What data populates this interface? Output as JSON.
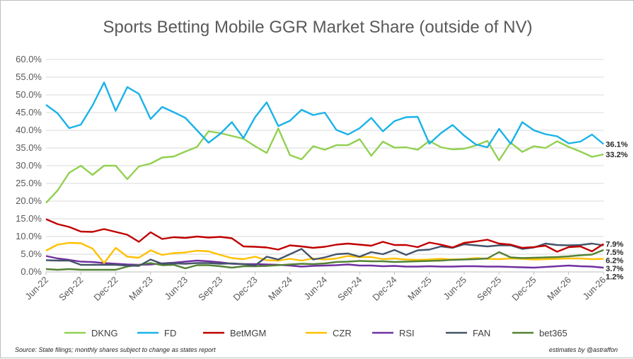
{
  "chart_data": {
    "type": "line",
    "title": "Sports Betting  Mobile GGR Market Share (outside of NV)",
    "y_ticks": [
      "0.0%",
      "5.0%",
      "10.0%",
      "15.0%",
      "20.0%",
      "25.0%",
      "30.0%",
      "35.0%",
      "40.0%",
      "45.0%",
      "50.0%",
      "55.0%",
      "60.0%"
    ],
    "ylim": [
      0,
      60
    ],
    "x_tick_labels": [
      "Jun-22",
      "Sep-22",
      "Dec-22",
      "Mar-23",
      "Jun-23",
      "Sep-23",
      "Dec-23",
      "Mar-24",
      "Jun-24",
      "Sep-24",
      "Dec-24",
      "Mar-25",
      "Jun-25",
      "Sep-25",
      "Dec-25",
      "Mar-26",
      "Jun-26"
    ],
    "x": [
      "Jun-22",
      "Jul-22",
      "Aug-22",
      "Sep-22",
      "Oct-22",
      "Nov-22",
      "Dec-22",
      "Jan-23",
      "Feb-23",
      "Mar-23",
      "Apr-23",
      "May-23",
      "Jun-23",
      "Jul-23",
      "Aug-23",
      "Sep-23",
      "Oct-23",
      "Nov-23",
      "Dec-23",
      "Jan-24",
      "Feb-24",
      "Mar-24",
      "Apr-24",
      "May-24",
      "Jun-24",
      "Jul-24",
      "Aug-24",
      "Sep-24",
      "Oct-24",
      "Nov-24",
      "Dec-24",
      "Jan-25",
      "Feb-25",
      "Mar-25",
      "Apr-25",
      "May-25",
      "Jun-25",
      "Jul-25",
      "Aug-25",
      "Sep-25",
      "Oct-25",
      "Nov-25",
      "Dec-25",
      "Jan-26",
      "Feb-26",
      "Mar-26",
      "Apr-26",
      "May-26",
      "Jun-26"
    ],
    "grid": true,
    "legend_position": "bottom",
    "series": [
      {
        "name": "DKNG",
        "color": "#92d050",
        "end_label": "33.2%",
        "values": [
          19.5,
          23,
          28,
          30,
          27.4,
          30,
          30,
          26.2,
          29.8,
          30.6,
          32.3,
          32.6,
          34,
          35.3,
          39.7,
          39.2,
          38.4,
          37.6,
          35.5,
          33.6,
          40.5,
          33,
          31.8,
          35.5,
          34.5,
          35.8,
          35.8,
          37.5,
          32.8,
          36.8,
          35.1,
          35.2,
          34.5,
          37,
          35.2,
          34.6,
          34.8,
          35.7,
          37,
          31.5,
          36.5,
          33.9,
          35.5,
          35,
          36.9,
          35.3,
          34,
          32.5,
          33.2
        ]
      },
      {
        "name": "FD",
        "color": "#1ab2e8",
        "end_label": "36.1%",
        "values": [
          47.2,
          44.8,
          40.6,
          41.6,
          47,
          53.5,
          45.5,
          52.2,
          50.3,
          43.2,
          46.6,
          45.1,
          43.5,
          40,
          36.5,
          39,
          42.3,
          37.8,
          43.7,
          47.9,
          41.2,
          42.7,
          45.8,
          44.3,
          45,
          40.1,
          38.8,
          40.6,
          43.5,
          39.7,
          42.6,
          43.7,
          43.8,
          36.2,
          39.2,
          41.5,
          38.5,
          36,
          35.2,
          40.4,
          36.2,
          42.3,
          40,
          38.9,
          38.3,
          36.3,
          36.8,
          38.8,
          36.1
        ]
      },
      {
        "name": "BetMGM",
        "color": "#c00000",
        "end_label": "7.9%",
        "values": [
          14.9,
          13.5,
          12.7,
          11.4,
          11.3,
          12.1,
          11.3,
          10.5,
          8.5,
          11.2,
          9.3,
          9.8,
          9.6,
          10,
          9.7,
          9.9,
          9.5,
          7.2,
          7.1,
          6.9,
          6.3,
          7.5,
          7.2,
          6.8,
          7.1,
          7.7,
          8,
          7.7,
          7.4,
          8.5,
          7.6,
          7.6,
          7,
          8.3,
          7.7,
          6.9,
          8.2,
          8.6,
          9.1,
          8,
          7.7,
          6.8,
          7,
          7.4,
          5.7,
          7,
          7.2,
          5.8,
          7.9
        ]
      },
      {
        "name": "CZR",
        "color": "#ffc000",
        "end_label": "3.7%",
        "values": [
          6,
          7.7,
          8.2,
          8.1,
          6.6,
          2.5,
          6.8,
          4.3,
          4,
          6.1,
          4.8,
          5.3,
          5.5,
          6,
          5.8,
          4.8,
          3.9,
          3.6,
          4.3,
          3.3,
          3.2,
          3.7,
          3.2,
          3.8,
          3.5,
          3.8,
          4.5,
          4.2,
          4.2,
          3.6,
          3.8,
          3.5,
          3.4,
          3.5,
          3.7,
          3.5,
          3.6,
          3.9,
          3.7,
          3.6,
          3.8,
          3.7,
          3.5,
          3.6,
          3.7,
          3.8,
          3.8,
          3.6,
          3.7
        ]
      },
      {
        "name": "RSI",
        "color": "#7030a0",
        "end_label": "1.2%",
        "values": [
          4.5,
          3.8,
          3.4,
          2.9,
          2.8,
          2.5,
          2.3,
          2.1,
          2,
          2.1,
          2.4,
          2.6,
          2.9,
          3.2,
          3,
          2.7,
          2.3,
          2.2,
          2.2,
          2.1,
          2,
          1.8,
          1.5,
          1.7,
          1.8,
          1.9,
          2.1,
          1.8,
          1.8,
          1.6,
          1.7,
          1.5,
          1.5,
          1.6,
          1.5,
          1.5,
          1.6,
          1.6,
          1.5,
          1.5,
          1.4,
          1.3,
          1.2,
          1.4,
          1.6,
          1.8,
          1.6,
          1.5,
          1.2
        ]
      },
      {
        "name": "FAN",
        "color": "#44546a",
        "end_label": "7.5%",
        "values": [
          3.3,
          3.2,
          3.2,
          2,
          2,
          2,
          2,
          1.8,
          1.7,
          3.5,
          2.3,
          2.4,
          2.3,
          2.5,
          2.5,
          2.3,
          2.4,
          2.2,
          1.8,
          4.3,
          3.5,
          5,
          6.5,
          3.5,
          4.1,
          5,
          5.2,
          4.3,
          5.6,
          5,
          6.2,
          4.8,
          6.1,
          6.3,
          7.2,
          6.8,
          7.8,
          7.5,
          7.2,
          7.5,
          7.5,
          6.5,
          6.9,
          8,
          7.6,
          7.5,
          7.6,
          8,
          7.5
        ]
      },
      {
        "name": "bet365",
        "color": "#548235",
        "end_label": "6.2%",
        "values": [
          0.8,
          0.6,
          0.8,
          0.6,
          0.6,
          0.6,
          0.6,
          1.5,
          2,
          2.5,
          1.9,
          2,
          1,
          1.9,
          1.9,
          1.6,
          1.2,
          1.6,
          1.6,
          1.7,
          1.9,
          2.1,
          2.3,
          2.2,
          2.4,
          2.8,
          2.9,
          3.1,
          3,
          3,
          2.8,
          2.9,
          3,
          3.1,
          3.2,
          3.4,
          3.5,
          3.6,
          3.8,
          5.6,
          4.1,
          3.9,
          4,
          4.1,
          4.2,
          4.4,
          4.7,
          4.9,
          6.2
        ]
      }
    ]
  },
  "footer": {
    "source": "Source: State filings; monthly shares subject to change as states report",
    "credit": "estimates by @astraffon"
  }
}
